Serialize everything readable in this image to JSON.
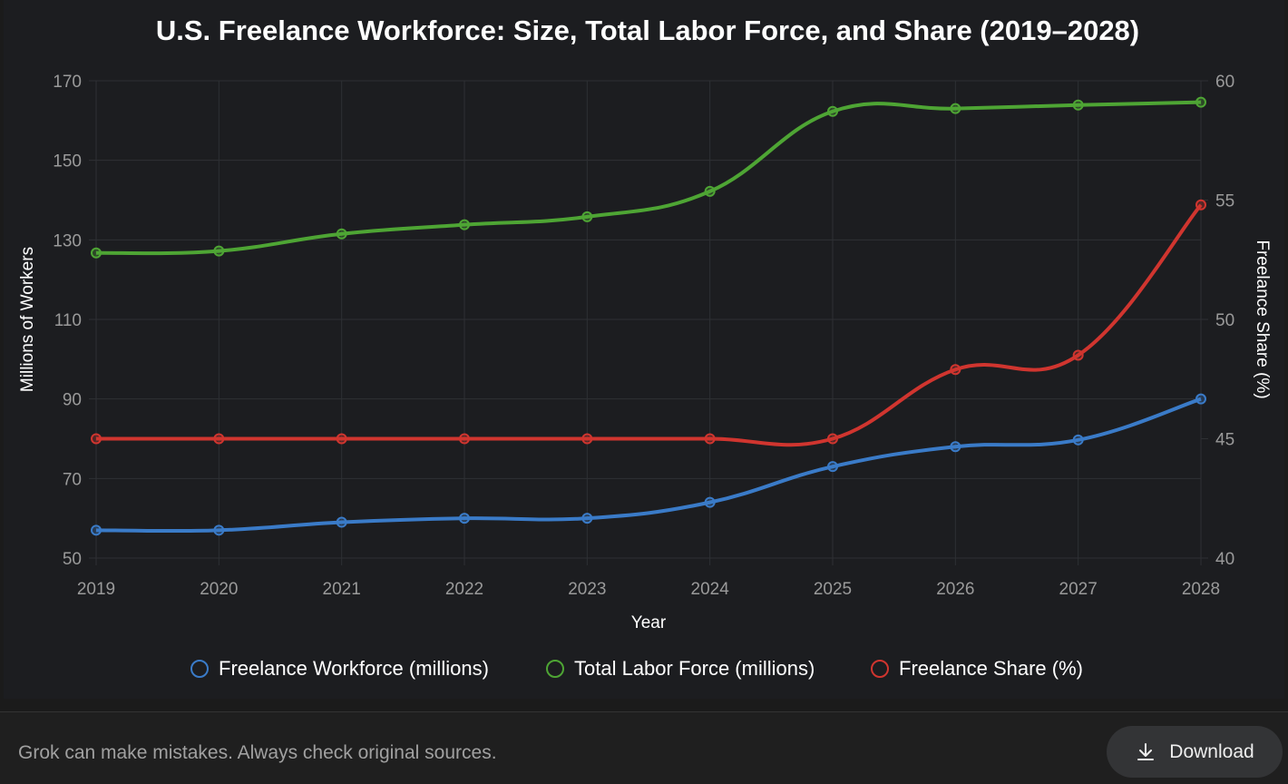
{
  "chart_data": {
    "type": "line",
    "title": "U.S. Freelance Workforce: Size, Total Labor Force, and Share (2019–2028)",
    "xlabel": "Year",
    "ylabel": "Millions of Workers",
    "y2label": "Freelance Share (%)",
    "categories": [
      "2019",
      "2020",
      "2021",
      "2022",
      "2023",
      "2024",
      "2025",
      "2026",
      "2027",
      "2028"
    ],
    "ylim": [
      50,
      170
    ],
    "yticks": [
      50,
      70,
      90,
      110,
      130,
      150,
      170
    ],
    "y2lim": [
      40,
      60
    ],
    "y2ticks": [
      40,
      45,
      50,
      55,
      60
    ],
    "grid": true,
    "legend_position": "bottom",
    "series": [
      {
        "name": "Freelance Workforce (millions)",
        "axis": "left",
        "color": "#3a7bc8",
        "values": [
          57,
          57,
          59,
          60,
          60,
          64,
          73,
          78,
          79.7,
          90
        ]
      },
      {
        "name": "Total Labor Force (millions)",
        "axis": "left",
        "color": "#4ea534",
        "values": [
          126.7,
          127.2,
          131.5,
          133.8,
          135.8,
          142.2,
          162.3,
          163,
          163.9,
          164.6
        ]
      },
      {
        "name": "Freelance Share (%)",
        "axis": "right",
        "color": "#d0352f",
        "values": [
          45,
          45,
          45,
          45,
          45,
          45,
          45,
          47.9,
          48.5,
          54.8
        ]
      }
    ]
  },
  "footer": {
    "disclaimer": "Grok can make mistakes. Always check original sources.",
    "download_label": "Download"
  }
}
